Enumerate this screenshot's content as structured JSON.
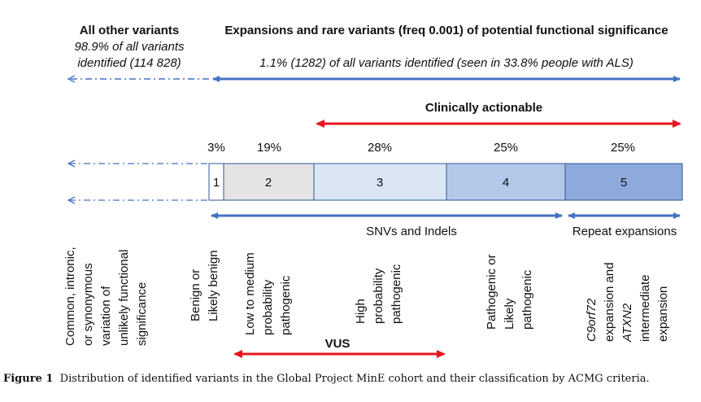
{
  "header": {
    "other_title": "All other variants",
    "other_line1": "98.9% of all variants",
    "other_line2": "identified (114 828)",
    "expansion_title": "Expansions and rare variants (freq 0.001) of potential functional significance",
    "expansion_sub": "1.1% (1282) of all variants identified (seen in 33.8% people with ALS)"
  },
  "clinically_actionable": "Clinically actionable",
  "classes": [
    {
      "label": "1",
      "percent": "3%",
      "fill": "#ffffff"
    },
    {
      "label": "2",
      "percent": "19%",
      "fill": "#e4e4e4"
    },
    {
      "label": "3",
      "percent": "28%",
      "fill": "#dbe6f5"
    },
    {
      "label": "4",
      "percent": "25%",
      "fill": "#b3c7e8"
    },
    {
      "label": "5",
      "percent": "25%",
      "fill": "#8eaadc"
    }
  ],
  "groups": {
    "snvs": "SNVs and Indels",
    "repeats": "Repeat expansions"
  },
  "descriptions": {
    "other": [
      "Common, intronic,",
      "or synonymous",
      "variation of",
      "unlikely functional",
      "significance"
    ],
    "class1": [
      "Benign or",
      "Likely benign"
    ],
    "class2": [
      "Low to medium",
      "probability",
      "pathogenic"
    ],
    "class3": [
      "High",
      "probability",
      "pathogenic"
    ],
    "class4": [
      "Pathogenic or",
      "Likely",
      "pathogenic"
    ],
    "class5": [
      "C9orf72",
      "expansion and",
      "ATXN2",
      "intermediate",
      "expansion"
    ]
  },
  "vus": "VUS",
  "caption": {
    "lead": "Figure 1",
    "text": "Distribution of identified variants in the Global Project MinE cohort and their classification by ACMG criteria."
  },
  "colors": {
    "blue_arrow": "#4472c4",
    "red_arrow": "#e8141e",
    "box_border": "#2f5597"
  }
}
